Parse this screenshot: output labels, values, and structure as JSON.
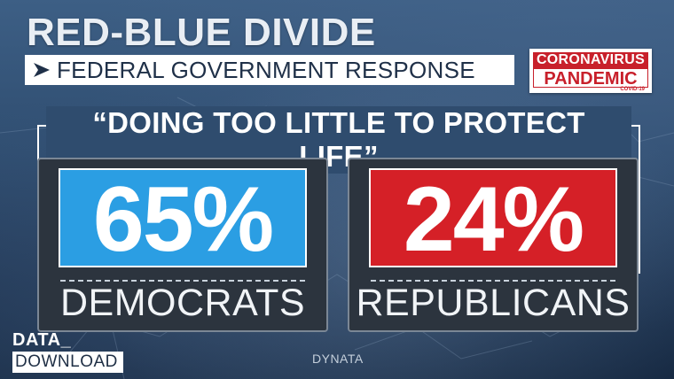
{
  "headline": "RED-BLUE DIVIDE",
  "subtitle": "FEDERAL GOVERNMENT RESPONSE",
  "logo": {
    "line1": "CORONAVIRUS",
    "line2": "PANDEMIC",
    "line3": "COVID-19"
  },
  "question": "“DOING TOO LITTLE TO PROTECT LIFE”",
  "results": [
    {
      "value": "65%",
      "party": "DEMOCRATS",
      "color": "#2b9ee3"
    },
    {
      "value": "24%",
      "party": "REPUBLICANS",
      "color": "#d52027"
    }
  ],
  "brand": {
    "line1": "DATA_",
    "line2": "DOWNLOAD"
  },
  "source": "DYNATA"
}
